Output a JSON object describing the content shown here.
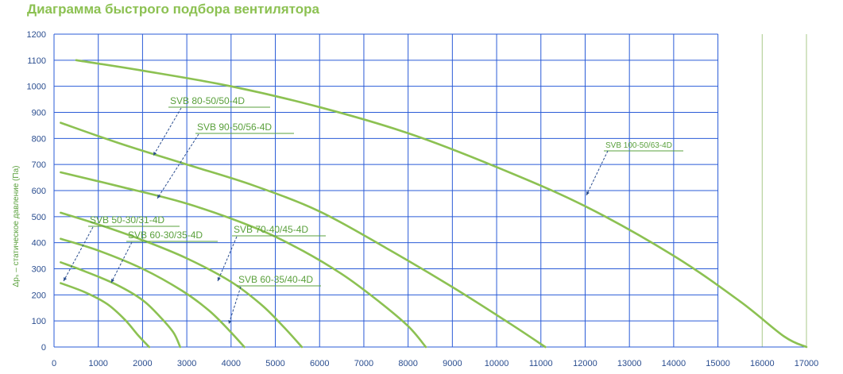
{
  "title": "Диаграмма быстрого подбора вентилятора",
  "chart_data": {
    "type": "line",
    "title": "Диаграмма быстрого подбора вентилятора",
    "ylabel": "Δpₛ – статическое давление (Па)",
    "xlabel": "",
    "xlim": [
      0,
      17000
    ],
    "ylim": [
      0,
      1200
    ],
    "x_ticks": [
      0,
      1000,
      2000,
      3000,
      4000,
      5000,
      6000,
      7000,
      8000,
      9000,
      10000,
      11000,
      12000,
      13000,
      14000,
      15000,
      16000,
      17000
    ],
    "y_ticks": [
      0,
      100,
      200,
      300,
      400,
      500,
      600,
      700,
      800,
      900,
      1000,
      1100,
      1200
    ],
    "grid": true,
    "colors": {
      "grid": "#2a5bd7",
      "curve": "#8cc152",
      "label": "#5aa03c",
      "tick": "#2a4d8f"
    },
    "series": [
      {
        "name": "SVB 100-50/63-4D",
        "points": [
          [
            500,
            1100
          ],
          [
            2000,
            1060
          ],
          [
            4000,
            1000
          ],
          [
            6000,
            920
          ],
          [
            8000,
            820
          ],
          [
            10000,
            690
          ],
          [
            12000,
            540
          ],
          [
            14000,
            350
          ],
          [
            15500,
            175
          ],
          [
            16500,
            40
          ],
          [
            17000,
            0
          ]
        ]
      },
      {
        "name": "SVB 80-50/50-4D",
        "points": [
          [
            150,
            860
          ],
          [
            1500,
            780
          ],
          [
            3000,
            700
          ],
          [
            4500,
            620
          ],
          [
            6000,
            520
          ],
          [
            7500,
            380
          ],
          [
            9000,
            230
          ],
          [
            10300,
            90
          ],
          [
            11100,
            0
          ]
        ]
      },
      {
        "name": "SVB 90-50/56-4D",
        "points": [
          [
            150,
            670
          ],
          [
            1500,
            615
          ],
          [
            3000,
            550
          ],
          [
            4500,
            460
          ],
          [
            5500,
            380
          ],
          [
            6500,
            280
          ],
          [
            7300,
            180
          ],
          [
            8000,
            80
          ],
          [
            8400,
            0
          ]
        ]
      },
      {
        "name": "SVB 70-40/45-4D",
        "points": [
          [
            150,
            515
          ],
          [
            1000,
            470
          ],
          [
            2000,
            410
          ],
          [
            3000,
            340
          ],
          [
            4000,
            250
          ],
          [
            4700,
            160
          ],
          [
            5200,
            75
          ],
          [
            5600,
            0
          ]
        ]
      },
      {
        "name": "SVB 60-35/40-4D",
        "points": [
          [
            150,
            415
          ],
          [
            1000,
            370
          ],
          [
            2000,
            300
          ],
          [
            2900,
            215
          ],
          [
            3500,
            140
          ],
          [
            3950,
            65
          ],
          [
            4300,
            0
          ]
        ]
      },
      {
        "name": "SVB 60-30/35-4D",
        "points": [
          [
            150,
            325
          ],
          [
            700,
            290
          ],
          [
            1400,
            240
          ],
          [
            2000,
            180
          ],
          [
            2400,
            115
          ],
          [
            2700,
            55
          ],
          [
            2850,
            0
          ]
        ]
      },
      {
        "name": "SVB 50-30/31-4D",
        "points": [
          [
            150,
            245
          ],
          [
            700,
            210
          ],
          [
            1200,
            165
          ],
          [
            1600,
            105
          ],
          [
            1900,
            45
          ],
          [
            2150,
            0
          ]
        ]
      }
    ],
    "annotations": [
      {
        "text": "SVB 80-50/50-4D",
        "series": "SVB 80-50/50-4D"
      },
      {
        "text": "SVB 90-50/56-4D",
        "series": "SVB 90-50/56-4D"
      },
      {
        "text": "SVB 50-30/31-4D",
        "series": "SVB 50-30/31-4D"
      },
      {
        "text": "SVB 60-30/35-4D",
        "series": "SVB 60-30/35-4D"
      },
      {
        "text": "SVB 70-40/45-4D",
        "series": "SVB 70-40/45-4D"
      },
      {
        "text": "SVB 60-35/40-4D",
        "series": "SVB 60-35/40-4D"
      },
      {
        "text": "SVB 100-50/63-4D",
        "series": "SVB 100-50/63-4D"
      }
    ]
  }
}
